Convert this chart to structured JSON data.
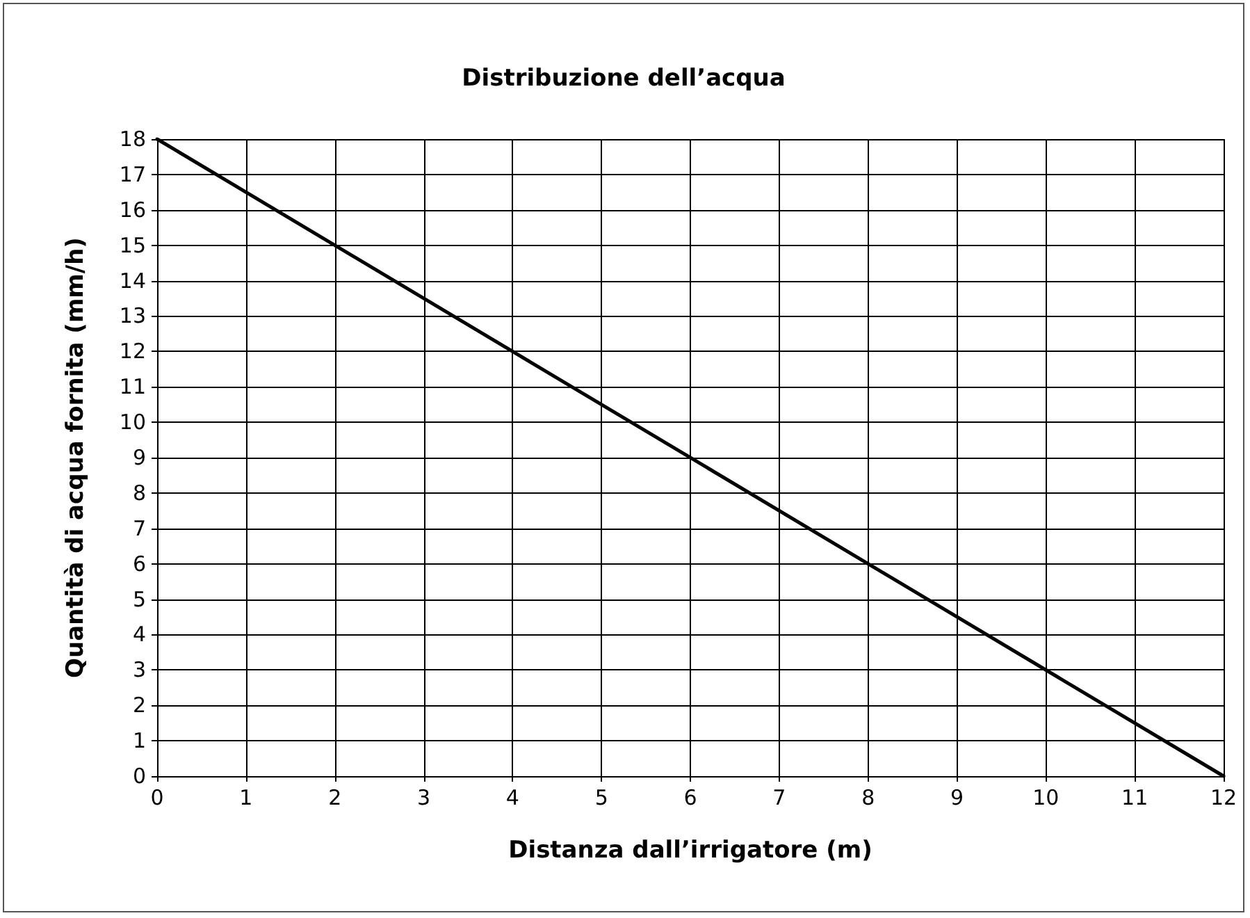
{
  "chart_data": {
    "type": "line",
    "title": "Distribuzione dell’acqua",
    "xlabel": "Distanza dall’irrigatore (m)",
    "ylabel": "Quantità di acqua fornita (mm/h)",
    "x": [
      0,
      12
    ],
    "series": [
      {
        "color": "#000000",
        "values": [
          18,
          0
        ]
      }
    ],
    "xlim": [
      0,
      12
    ],
    "xticks": [
      0,
      1,
      2,
      3,
      4,
      5,
      6,
      7,
      8,
      9,
      10,
      11,
      12
    ],
    "ylim": [
      0,
      18
    ],
    "yticks": [
      0,
      1,
      2,
      3,
      4,
      5,
      6,
      7,
      8,
      9,
      10,
      11,
      12,
      13,
      14,
      15,
      16,
      17,
      18
    ],
    "grid": true,
    "marker": "none",
    "line_style": "solid"
  }
}
